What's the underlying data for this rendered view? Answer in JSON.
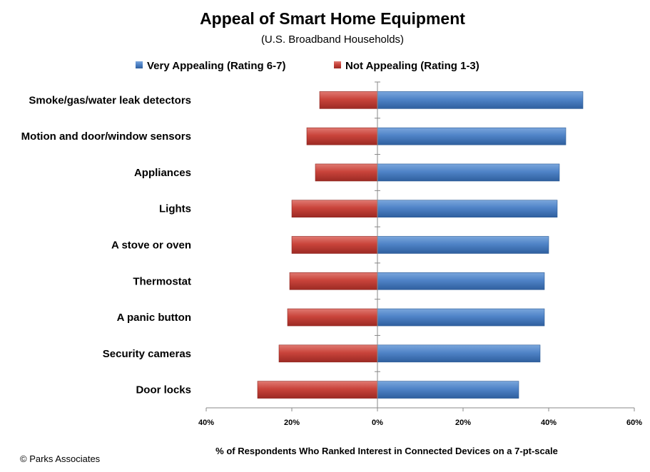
{
  "chart_data": {
    "type": "bar",
    "orientation": "horizontal-diverging",
    "title": "Appeal of Smart Home Equipment",
    "subtitle": "(U.S. Broadband Households)",
    "xlabel": "% of Respondents Who Ranked Interest in Connected Devices on a 7-pt-scale",
    "categories": [
      "Smoke/gas/water leak detectors",
      "Motion and door/window sensors",
      "Appliances",
      "Lights",
      "A stove or oven",
      "Thermostat",
      "A panic button",
      "Security cameras",
      "Door locks"
    ],
    "series": [
      {
        "name": "Very Appealing (Rating 6-7)",
        "color": "#4a7ebf",
        "direction": "positive",
        "values": [
          48,
          44,
          42.5,
          42,
          40,
          39,
          39,
          38,
          33
        ]
      },
      {
        "name": "Not Appealing (Rating 1-3)",
        "color": "#c0392b",
        "direction": "negative",
        "values": [
          13.5,
          16.5,
          14.5,
          20,
          20,
          20.5,
          21,
          23,
          28
        ]
      }
    ],
    "xlim": [
      -40,
      60
    ],
    "xticks": [
      -40,
      -20,
      0,
      20,
      40,
      60
    ],
    "xtick_labels": [
      "40%",
      "20%",
      "0%",
      "20%",
      "40%",
      "60%"
    ],
    "legend_position": "top",
    "grid": false
  },
  "credit": "© Parks Associates"
}
